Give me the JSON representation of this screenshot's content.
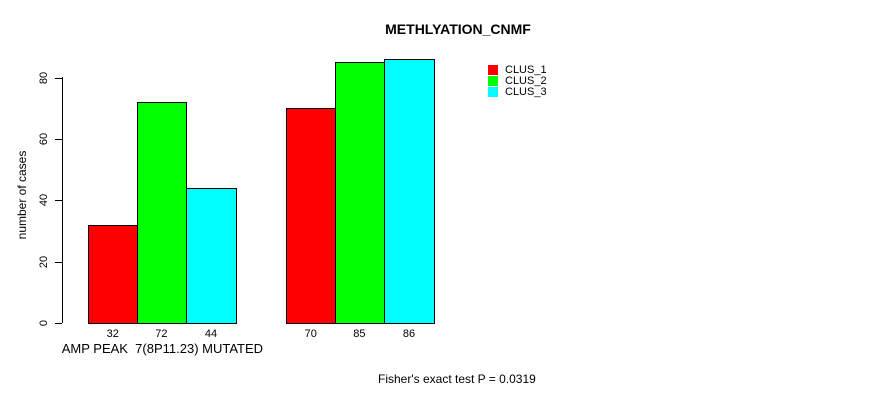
{
  "title": "METHLYATION_CNMF",
  "footer": "Fisher's exact test P = 0.0319",
  "chart_data": {
    "type": "bar",
    "title": "METHLYATION_CNMF",
    "xlabel": "",
    "ylabel": "number of cases",
    "ylim": [
      0,
      86
    ],
    "yticks": [
      0,
      20,
      40,
      60,
      80
    ],
    "grid": false,
    "legend_position": "top-right",
    "background": "#ffffff",
    "bar_border_color": "#000000",
    "series": [
      {
        "name": "CLUS_1",
        "color": "#ff0000",
        "values": [
          32,
          70
        ]
      },
      {
        "name": "CLUS_2",
        "color": "#00ff00",
        "values": [
          72,
          85
        ]
      },
      {
        "name": "CLUS_3",
        "color": "#00ffff",
        "values": [
          44,
          86
        ]
      }
    ],
    "groups": [
      {
        "label": "AMP PEAK  7(8P11.23) MUTATED",
        "values": [
          32,
          72,
          44
        ],
        "bar_labels": [
          "32",
          "72",
          "44"
        ]
      },
      {
        "label": "",
        "values": [
          70,
          85,
          86
        ],
        "bar_labels": [
          "70",
          "85",
          "86"
        ]
      }
    ],
    "annotation": "Fisher's exact test P = 0.0319"
  }
}
